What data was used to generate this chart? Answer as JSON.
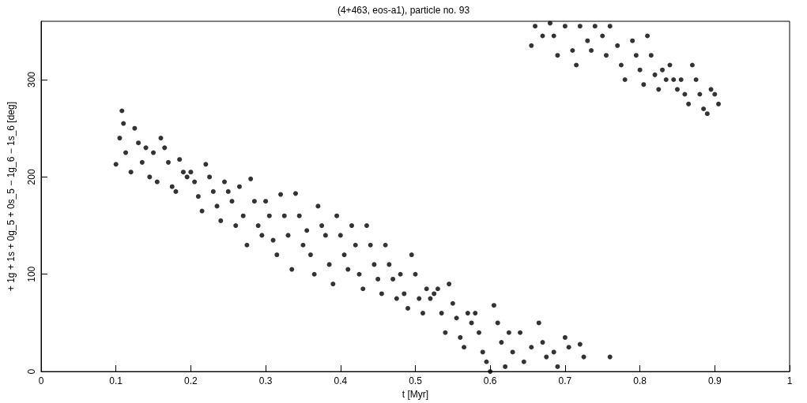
{
  "chart_data": {
    "type": "scatter",
    "title": "(4+463, eos-a1), particle no. 93",
    "xlabel": "t [Myr]",
    "ylabel": "+ 1g + 1s + 0g_5 + 0s_5 − 1g_6 − 1s_6 [deg]",
    "xlim": [
      0,
      1
    ],
    "xticks": [
      0,
      0.1,
      0.2,
      0.3,
      0.4,
      0.5,
      0.6,
      0.7,
      0.8,
      0.9,
      1
    ],
    "ylim": [
      0,
      360
    ],
    "yticks": [
      0,
      100,
      200,
      300
    ],
    "grid": false,
    "marker": "circle",
    "series": [
      {
        "color": "#000000",
        "x": [
          0.1,
          0.105,
          0.108,
          0.11,
          0.113,
          0.12,
          0.125,
          0.13,
          0.135,
          0.14,
          0.145,
          0.15,
          0.155,
          0.16,
          0.165,
          0.17,
          0.175,
          0.18,
          0.185,
          0.19,
          0.195,
          0.2,
          0.205,
          0.21,
          0.215,
          0.22,
          0.225,
          0.23,
          0.235,
          0.24,
          0.245,
          0.25,
          0.255,
          0.26,
          0.265,
          0.27,
          0.275,
          0.28,
          0.285,
          0.29,
          0.295,
          0.3,
          0.305,
          0.31,
          0.315,
          0.32,
          0.325,
          0.33,
          0.335,
          0.34,
          0.345,
          0.35,
          0.355,
          0.36,
          0.365,
          0.37,
          0.375,
          0.38,
          0.385,
          0.39,
          0.395,
          0.4,
          0.405,
          0.41,
          0.415,
          0.42,
          0.425,
          0.43,
          0.435,
          0.44,
          0.445,
          0.45,
          0.455,
          0.46,
          0.465,
          0.47,
          0.475,
          0.48,
          0.485,
          0.49,
          0.495,
          0.5,
          0.505,
          0.51,
          0.515,
          0.52,
          0.525,
          0.53,
          0.535,
          0.54,
          0.545,
          0.55,
          0.555,
          0.56,
          0.565,
          0.57,
          0.575,
          0.58,
          0.585,
          0.59,
          0.595,
          0.6,
          0.605,
          0.61,
          0.615,
          0.62,
          0.625,
          0.63,
          0.64,
          0.645,
          0.655,
          0.665,
          0.67,
          0.675,
          0.685,
          0.69,
          0.7,
          0.705,
          0.72,
          0.725,
          0.76,
          0.655,
          0.66,
          0.67,
          0.68,
          0.685,
          0.69,
          0.7,
          0.71,
          0.715,
          0.72,
          0.73,
          0.735,
          0.74,
          0.75,
          0.755,
          0.76,
          0.77,
          0.775,
          0.78,
          0.79,
          0.795,
          0.8,
          0.805,
          0.81,
          0.815,
          0.82,
          0.825,
          0.83,
          0.835,
          0.84,
          0.845,
          0.85,
          0.855,
          0.86,
          0.865,
          0.87,
          0.875,
          0.88,
          0.885,
          0.89,
          0.895,
          0.9,
          0.905
        ],
        "values": [
          213,
          240,
          268,
          255,
          225,
          205,
          250,
          235,
          215,
          230,
          200,
          225,
          195,
          240,
          230,
          215,
          190,
          185,
          218,
          205,
          200,
          205,
          195,
          180,
          165,
          213,
          200,
          185,
          170,
          155,
          195,
          185,
          175,
          150,
          190,
          160,
          130,
          198,
          175,
          150,
          140,
          175,
          160,
          135,
          120,
          182,
          160,
          140,
          105,
          183,
          160,
          130,
          145,
          120,
          100,
          170,
          150,
          140,
          110,
          90,
          160,
          140,
          120,
          105,
          150,
          130,
          100,
          85,
          150,
          130,
          110,
          95,
          80,
          130,
          110,
          95,
          75,
          100,
          80,
          65,
          120,
          100,
          75,
          60,
          85,
          75,
          80,
          85,
          60,
          40,
          90,
          70,
          55,
          35,
          25,
          60,
          50,
          60,
          40,
          20,
          10,
          0,
          68,
          50,
          30,
          5,
          40,
          20,
          40,
          10,
          25,
          50,
          30,
          15,
          20,
          5,
          35,
          25,
          28,
          15,
          15,
          335,
          355,
          345,
          358,
          345,
          325,
          355,
          330,
          315,
          355,
          340,
          330,
          355,
          345,
          325,
          355,
          335,
          315,
          300,
          340,
          325,
          310,
          295,
          345,
          325,
          305,
          290,
          310,
          300,
          315,
          300,
          290,
          300,
          285,
          275,
          315,
          300,
          285,
          270,
          265,
          290,
          285,
          275
        ]
      }
    ]
  }
}
